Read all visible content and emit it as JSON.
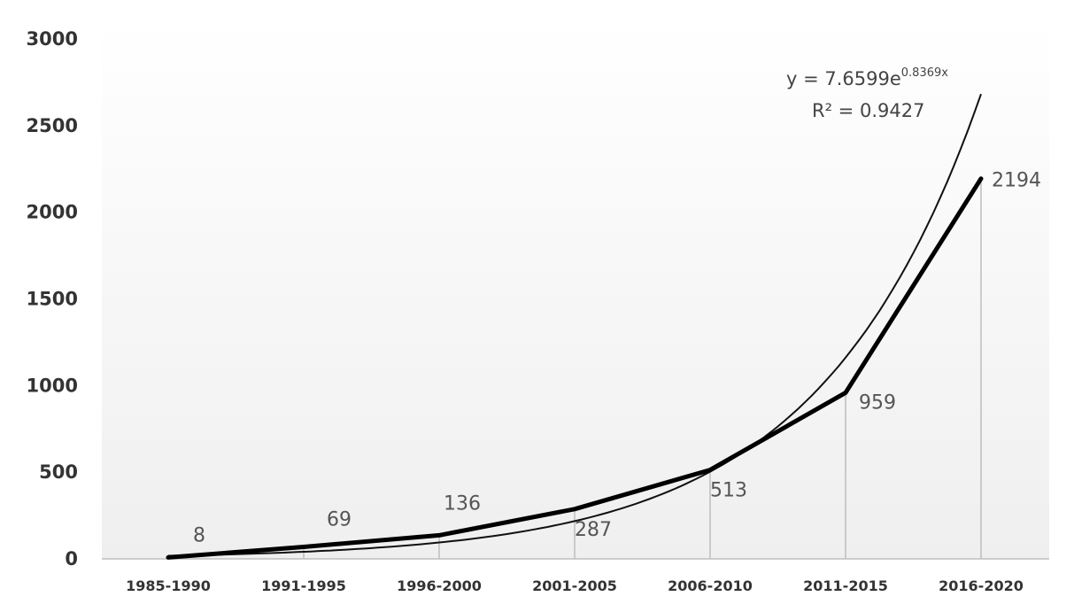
{
  "chart_data": {
    "type": "line",
    "categories": [
      "1985-1990",
      "1991-1995",
      "1996-2000",
      "2001-2005",
      "2006-2010",
      "2011-2015",
      "2016-2020"
    ],
    "series": [
      {
        "values": [
          8,
          69,
          136,
          287,
          513,
          959,
          2194
        ]
      }
    ],
    "data_labels": [
      "8",
      "69",
      "136",
      "287",
      "513",
      "959",
      "2194"
    ],
    "yticks": [
      "0",
      "500",
      "1000",
      "1500",
      "2000",
      "2500",
      "3000"
    ],
    "ylim": [
      0,
      3000
    ],
    "grid": false,
    "drop_lines": true,
    "trendline": {
      "type": "exponential",
      "a": 7.6599,
      "b": 0.8369,
      "equation_prefix": "y = 7.6599e",
      "equation_exponent": "0.8369x",
      "r_squared_label": "R² = 0.9427"
    },
    "title": "",
    "xlabel": "",
    "ylabel": ""
  },
  "colors": {
    "series_line": "#000000",
    "trend_line": "#111111",
    "drop_line": "#bdbdbd",
    "axis_line": "#bfbfbf",
    "plot_bg_top": "#ffffff",
    "plot_bg_bottom": "#efefef"
  }
}
